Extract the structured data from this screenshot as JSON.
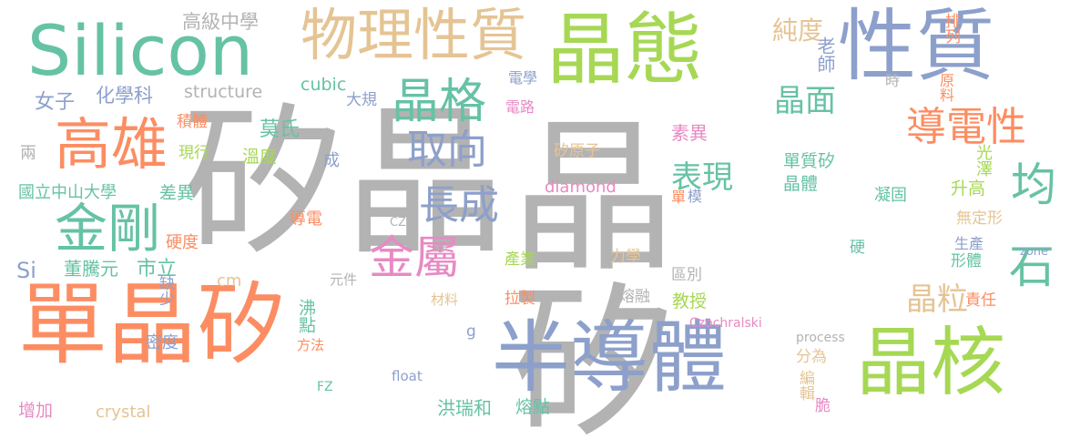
{
  "palette": {
    "gray": "#b3b3b3",
    "orange": "#fc8d62",
    "green": "#66c2a5",
    "blue": "#8da0cb",
    "lime": "#a6d854",
    "tan": "#e5c494",
    "pink": "#e78ac3",
    "yellow": "#ffd92f"
  },
  "words": [
    "矽晶",
    "晶矽",
    "單晶矽",
    "半導體",
    "晶核",
    "晶態",
    "性質",
    "Silicon",
    "物理性質",
    "高雄",
    "金剛",
    "晶格",
    "金屬",
    "導電性",
    "均",
    "石",
    "取向",
    "長成",
    "表現",
    "晶面",
    "晶粒",
    "純度",
    "高級中學",
    "老師",
    "排列",
    "時",
    "原料",
    "structure",
    "cubic",
    "女子",
    "化學科",
    "電學",
    "大規",
    "電路",
    "積體",
    "莫氏",
    "現行",
    "兩",
    "素異",
    "矽原子",
    "溫度",
    "成",
    "單質矽",
    "晶體",
    "光澤",
    "升高",
    "國立中山大學",
    "差異",
    "diamond",
    "凝固",
    "單",
    "模",
    "導電",
    "CZ",
    "無定形",
    "硬度",
    "生產",
    "zone",
    "Si",
    "董騰元",
    "市立",
    "產業",
    "力學",
    "硬",
    "形體",
    "cm",
    "元件",
    "區別",
    "缺少",
    "材料",
    "拉製",
    "熔融",
    "教授",
    "責任",
    "沸點",
    "Czochralski",
    "g",
    "密度",
    "方法",
    "process",
    "分為",
    "編輯",
    "FZ",
    "float",
    "脆",
    "洪瑞和",
    "熔點",
    "增加",
    "crystal"
  ]
}
